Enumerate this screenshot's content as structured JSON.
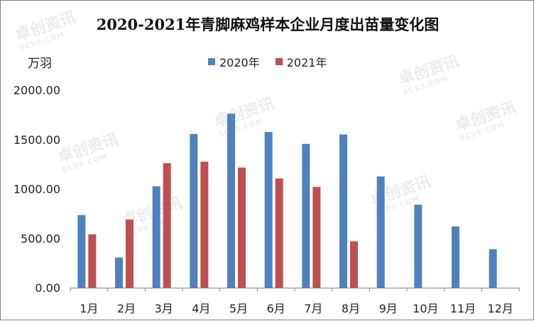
{
  "chart_data": {
    "type": "bar",
    "title": "2020-2021年青脚麻鸡样本企业月度出苗量变化图",
    "ylabel": "万羽",
    "categories": [
      "1月",
      "2月",
      "3月",
      "4月",
      "5月",
      "6月",
      "7月",
      "8月",
      "9月",
      "10月",
      "11月",
      "12月"
    ],
    "series": [
      {
        "name": "2020年",
        "color": "#4f81bd",
        "values": [
          735,
          305,
          1025,
          1555,
          1760,
          1575,
          1455,
          1550,
          1125,
          840,
          620,
          390
        ]
      },
      {
        "name": "2021年",
        "color": "#c0504d",
        "values": [
          540,
          690,
          1260,
          1275,
          1215,
          1105,
          1020,
          470,
          null,
          null,
          null,
          null
        ]
      }
    ],
    "ylim": [
      0,
      2000
    ],
    "yticks": [
      "0.00",
      "500.00",
      "1000.00",
      "1500.00",
      "2000.00"
    ],
    "grid": false,
    "legend_position": "top"
  },
  "watermark": {
    "text": "卓创资讯",
    "subtext": "SC99.COM"
  }
}
